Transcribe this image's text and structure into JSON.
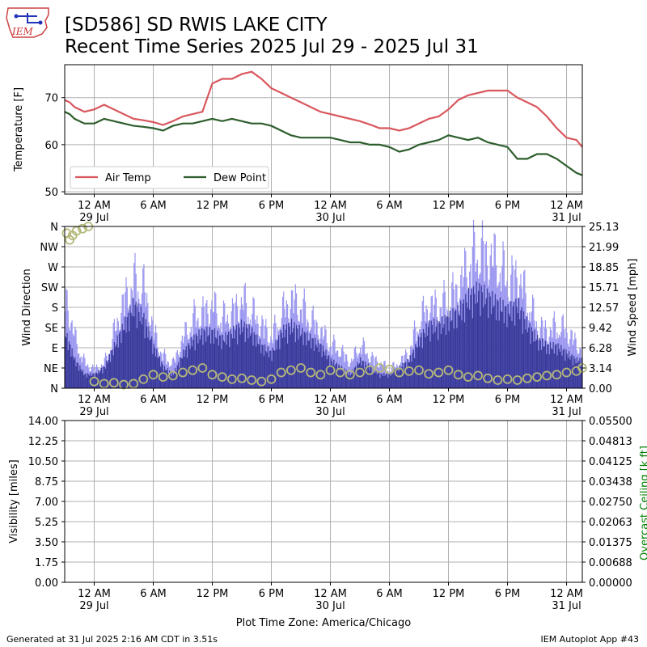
{
  "header": {
    "title_line1": "[SD586] SD RWIS LAKE CITY",
    "title_line2": "Recent Time Series 2025 Jul 29 - 2025 Jul 31",
    "logo_text": "IEM"
  },
  "footer": {
    "generated": "Generated at 31 Jul 2025 2:16 AM CDT in 3.51s",
    "app": "IEM Autoplot App #43",
    "timezone": "Plot Time Zone: America/Chicago"
  },
  "colors": {
    "air_temp": "#d9575e",
    "dew_point": "#2d5e2d",
    "wind_speed_light": "#9a96f0",
    "wind_speed_dark": "#393a9b",
    "wind_direction": "#b5b87a",
    "ceiling_label": "#008000",
    "grid": "#b0b0b0"
  },
  "time_axis": {
    "ticks": [
      {
        "label": "12 AM",
        "sub": "29 Jul",
        "hour": 0
      },
      {
        "label": "6 AM",
        "sub": "",
        "hour": 6
      },
      {
        "label": "12 PM",
        "sub": "",
        "hour": 12
      },
      {
        "label": "6 PM",
        "sub": "",
        "hour": 18
      },
      {
        "label": "12 AM",
        "sub": "30 Jul",
        "hour": 24
      },
      {
        "label": "6 AM",
        "sub": "",
        "hour": 30
      },
      {
        "label": "12 PM",
        "sub": "",
        "hour": 36
      },
      {
        "label": "6 PM",
        "sub": "",
        "hour": 42
      },
      {
        "label": "12 AM",
        "sub": "31 Jul",
        "hour": 48
      }
    ],
    "range_hours": [
      -3,
      49.6
    ]
  },
  "chart_data": [
    {
      "type": "line",
      "ylabel": "Temperature [F]",
      "ylim": [
        49.5,
        77
      ],
      "yticks": [
        50,
        60,
        70
      ],
      "legend_position": "lower-left",
      "grid": true,
      "series": [
        {
          "name": "Air Temp",
          "color": "#d9575e",
          "x": [
            -3,
            -2.5,
            -2,
            -1.5,
            -1,
            0,
            1,
            2,
            3,
            4,
            5,
            6,
            7,
            8,
            9,
            10,
            11,
            11.5,
            12,
            13,
            14,
            15,
            16,
            17,
            18,
            19,
            20,
            21,
            22,
            23,
            24,
            25,
            26,
            27,
            28,
            29,
            30,
            31,
            32,
            33,
            34,
            35,
            36,
            37,
            38,
            39,
            40,
            41,
            42,
            43,
            44,
            45,
            46,
            47,
            48,
            49,
            49.6
          ],
          "y": [
            69.5,
            69,
            68,
            67.5,
            67,
            67.5,
            68.5,
            67.5,
            66.5,
            65.5,
            65.2,
            64.8,
            64.2,
            65,
            66,
            66.5,
            67,
            70,
            73,
            74,
            74,
            75,
            75.5,
            74,
            72,
            71,
            70,
            69,
            68,
            67,
            66.5,
            66,
            65.5,
            65,
            64.3,
            63.5,
            63.5,
            63,
            63.5,
            64.5,
            65.5,
            66,
            67.5,
            69.5,
            70.5,
            71,
            71.5,
            71.5,
            71.5,
            70,
            69,
            68,
            66,
            63.5,
            61.5,
            61,
            59.5
          ]
        },
        {
          "name": "Dew Point",
          "color": "#2d5e2d",
          "x": [
            -3,
            -2.5,
            -2,
            -1,
            0,
            1,
            2,
            3,
            4,
            5,
            6,
            7,
            8,
            9,
            10,
            11,
            12,
            13,
            14,
            15,
            16,
            17,
            18,
            19,
            20,
            21,
            22,
            23,
            24,
            25,
            26,
            27,
            28,
            29,
            30,
            31,
            32,
            33,
            34,
            35,
            36,
            37,
            38,
            39,
            40,
            41,
            42,
            43,
            44,
            45,
            46,
            47,
            48,
            49,
            49.6
          ],
          "y": [
            67,
            66.5,
            65.5,
            64.5,
            64.5,
            65.5,
            65,
            64.5,
            64,
            63.8,
            63.5,
            63,
            64,
            64.5,
            64.5,
            65,
            65.5,
            65,
            65.5,
            65,
            64.5,
            64.5,
            64,
            63,
            62,
            61.5,
            61.5,
            61.5,
            61.5,
            61,
            60.5,
            60.5,
            60,
            60,
            59.5,
            58.5,
            59,
            60,
            60.5,
            61,
            62,
            61.5,
            61,
            61.5,
            60.5,
            60,
            59.5,
            57,
            57,
            58,
            58,
            57,
            55.5,
            54,
            53.5
          ]
        }
      ]
    },
    {
      "type": "bar",
      "ylabel": "Wind Direction",
      "y2label": "Wind Speed [mph]",
      "ylim": [
        0,
        360
      ],
      "y2lim": [
        0,
        25.13
      ],
      "yticks": [
        "N",
        "NE",
        "E",
        "SE",
        "S",
        "SW",
        "W",
        "NW",
        "N"
      ],
      "y2ticks": [
        "0.00",
        "3.14",
        "6.28",
        "9.42",
        "12.57",
        "15.71",
        "18.85",
        "21.99",
        "25.13"
      ],
      "grid": true,
      "series": [
        {
          "name": "Wind Gust",
          "color": "#9a96f0",
          "x": [
            -3,
            -2,
            -1,
            0,
            1,
            2,
            3,
            4,
            5,
            6,
            7,
            8,
            9,
            10,
            11,
            12,
            13,
            14,
            15,
            16,
            17,
            18,
            19,
            20,
            21,
            22,
            23,
            24,
            25,
            26,
            27,
            28,
            29,
            30,
            31,
            32,
            33,
            34,
            35,
            36,
            37,
            38,
            39,
            40,
            41,
            42,
            43,
            44,
            45,
            46,
            47,
            48,
            49,
            49.6
          ],
          "values": [
            15,
            8,
            4,
            3,
            4,
            9,
            14,
            17,
            16,
            9,
            5,
            4,
            8,
            11,
            12,
            13,
            11,
            12,
            14,
            12,
            10,
            8,
            12,
            14,
            13,
            11,
            9,
            7,
            6,
            4,
            7,
            5,
            4,
            3,
            4,
            6,
            11,
            13,
            13,
            14,
            16,
            20,
            22,
            21,
            20,
            17,
            18,
            14,
            10,
            9,
            10,
            9,
            7,
            6
          ]
        },
        {
          "name": "Wind Speed",
          "color": "#393a9b",
          "x": [
            -3,
            -2,
            -1,
            0,
            1,
            2,
            3,
            4,
            5,
            6,
            7,
            8,
            9,
            10,
            11,
            12,
            13,
            14,
            15,
            16,
            17,
            18,
            19,
            20,
            21,
            22,
            23,
            24,
            25,
            26,
            27,
            28,
            29,
            30,
            31,
            32,
            33,
            34,
            35,
            36,
            37,
            38,
            39,
            40,
            41,
            42,
            43,
            44,
            45,
            46,
            47,
            48,
            49,
            49.6
          ],
          "values": [
            8,
            4,
            2,
            2,
            3,
            6,
            9,
            12,
            10,
            6,
            3,
            2,
            5,
            7,
            8,
            8,
            7,
            8,
            9,
            8,
            6,
            5,
            8,
            9,
            8,
            7,
            6,
            4,
            3,
            2,
            4,
            3,
            2,
            2,
            3,
            4,
            7,
            9,
            9,
            10,
            11,
            13,
            14,
            13,
            12,
            11,
            12,
            9,
            7,
            6,
            6,
            5,
            4,
            4
          ]
        },
        {
          "name": "Wind Direction",
          "color": "#b5b87a",
          "marker": "circle",
          "x": [
            -2.8,
            -2.5,
            -2.2,
            -1.8,
            -1.2,
            -0.6,
            0,
            1,
            2,
            3,
            4,
            5,
            6,
            7,
            8,
            9,
            10,
            11,
            12,
            13,
            14,
            15,
            16,
            17,
            18,
            19,
            20,
            21,
            22,
            23,
            24,
            25,
            26,
            27,
            28,
            29,
            30,
            31,
            32,
            33,
            34,
            35,
            36,
            37,
            38,
            39,
            40,
            41,
            42,
            43,
            44,
            45,
            46,
            47,
            48,
            49,
            49.6
          ],
          "y": [
            345,
            330,
            340,
            350,
            355,
            360,
            15,
            10,
            12,
            8,
            10,
            20,
            30,
            25,
            28,
            35,
            40,
            45,
            30,
            25,
            20,
            22,
            18,
            15,
            20,
            35,
            40,
            45,
            35,
            30,
            40,
            35,
            30,
            35,
            40,
            45,
            42,
            35,
            38,
            40,
            32,
            35,
            40,
            30,
            25,
            28,
            22,
            18,
            20,
            18,
            22,
            25,
            28,
            30,
            35,
            38,
            45
          ]
        }
      ]
    },
    {
      "type": "line",
      "ylabel": "Visibility [miles]",
      "y2label": "Overcast Ceiling [k ft]",
      "ylim": [
        0,
        14
      ],
      "y2lim": [
        0,
        0.055
      ],
      "yticks": [
        "0.00",
        "1.75",
        "3.50",
        "5.25",
        "7.00",
        "8.75",
        "10.50",
        "12.25",
        "14.00"
      ],
      "y2ticks": [
        "0.00000",
        "0.00688",
        "0.01375",
        "0.02063",
        "0.02750",
        "0.03438",
        "0.04125",
        "0.04813",
        "0.05500"
      ],
      "grid": true,
      "series": []
    }
  ]
}
